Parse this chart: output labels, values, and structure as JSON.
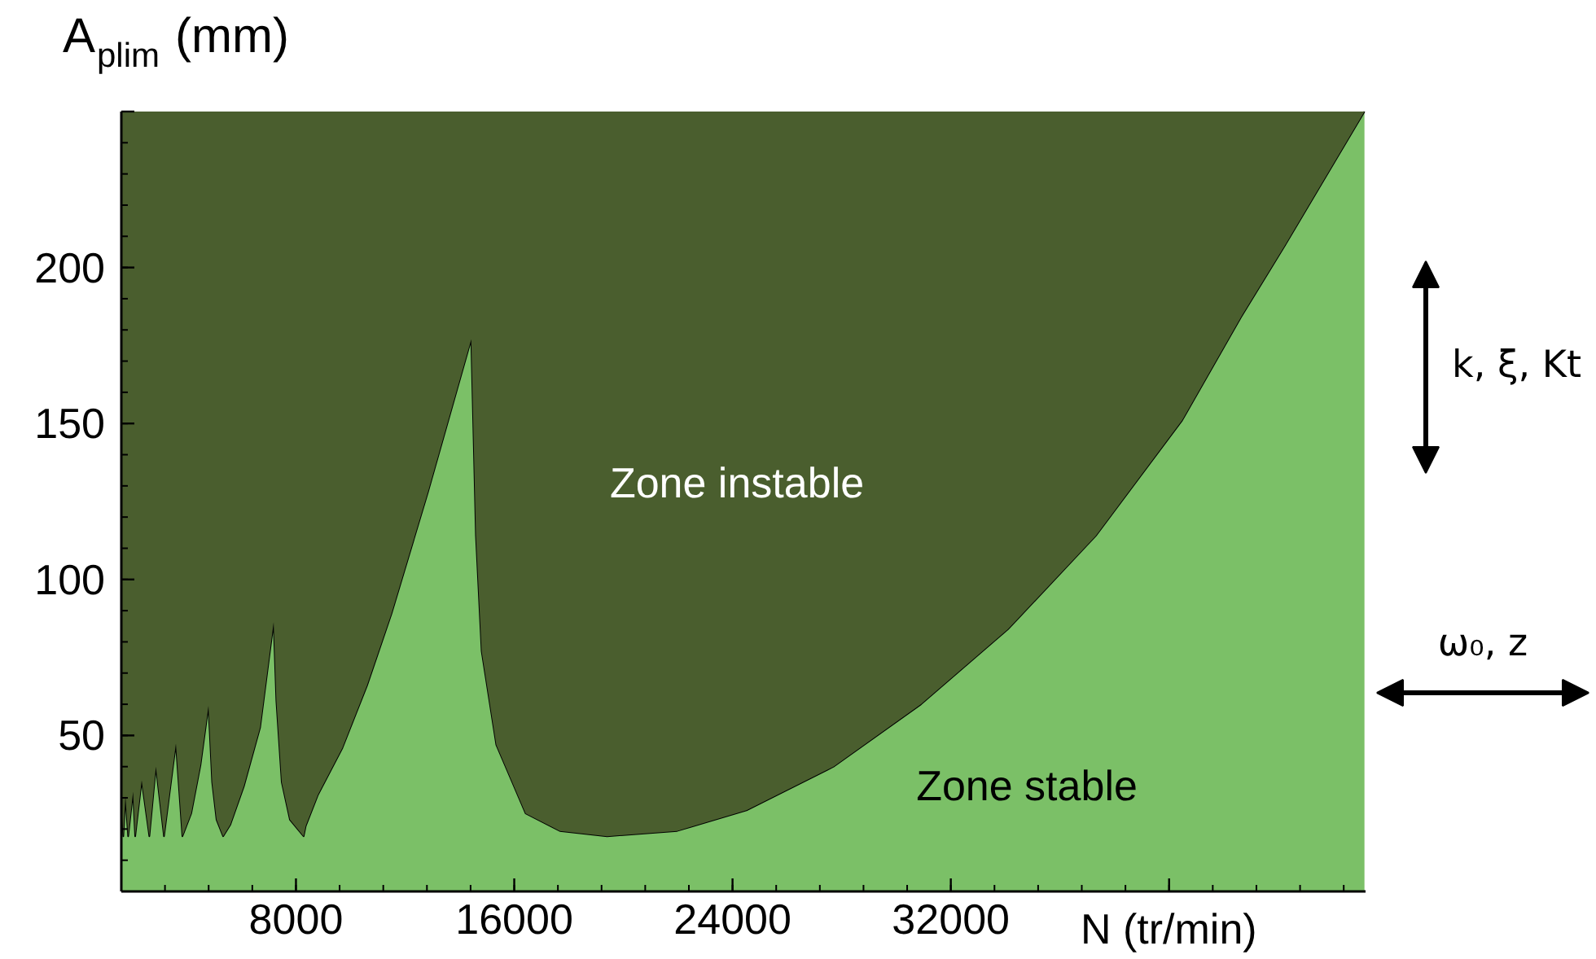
{
  "chart_data": {
    "type": "area",
    "xlabel": "N (tr/min)",
    "ylabel": "A$_{plim}$(mm)",
    "x": [
      1600,
      1672,
      1750,
      1851,
      2030,
      2108,
      2346,
      2627,
      2866,
      3164,
      3600,
      3839,
      4160,
      4500,
      4794,
      4930,
      5090,
      5331,
      5594,
      6089,
      6686,
      7182,
      7283,
      7480,
      7779,
      8280,
      8358,
      8806,
      9701,
      10603,
      11498,
      12836,
      14424,
      14597,
      14806,
      15343,
      16418,
      17672,
      19403,
      21970,
      24513,
      27701,
      30907,
      34089,
      37313,
      40477,
      42627,
      44240,
      47160
    ],
    "stacked": true,
    "series": [
      {
        "name": null,
        "color": "#7bc067",
        "values": [
          28,
          17.7,
          30.5,
          17.7,
          32,
          17.7,
          35.6,
          17.7,
          40,
          17.7,
          47.4,
          17.7,
          25,
          40.5,
          59.5,
          35,
          23,
          17.7,
          21.4,
          33.7,
          52.6,
          86.3,
          61,
          35,
          23,
          17.7,
          21,
          31,
          46,
          66,
          89,
          128,
          177,
          114,
          77,
          47,
          25,
          19.4,
          17.7,
          19.4,
          26,
          40,
          60,
          84,
          114,
          151,
          184,
          207,
          250
        ]
      },
      {
        "name": null,
        "color": "#4a5e2e",
        "values": [
          222,
          232.3,
          219.5,
          232.3,
          218,
          232.3,
          214.4,
          232.3,
          210,
          232.3,
          202.6,
          232.3,
          225,
          209.5,
          190.5,
          215,
          227,
          232.3,
          228.6,
          216.3,
          197.4,
          163.7,
          189,
          215,
          227,
          232.3,
          229,
          219,
          204,
          184,
          161,
          122,
          73,
          136,
          173,
          203,
          225,
          230.6,
          232.3,
          230.6,
          224,
          210,
          190,
          166,
          136,
          99,
          66,
          43,
          0
        ]
      }
    ],
    "annotations": [
      "Zone instable",
      "Zone stable",
      "k, ξ, Kt",
      "ω₀, z"
    ],
    "xlim": [
      1600,
      47200
    ],
    "ylim": [
      0,
      250
    ],
    "xticks": [
      8000,
      16000,
      24000,
      32000,
      {
        "value": 40000,
        "label": null
      }
    ],
    "yticks": [
      50,
      100,
      150,
      200,
      {
        "value": 250,
        "label": null
      }
    ],
    "grid": false,
    "line_style": "solid"
  }
}
